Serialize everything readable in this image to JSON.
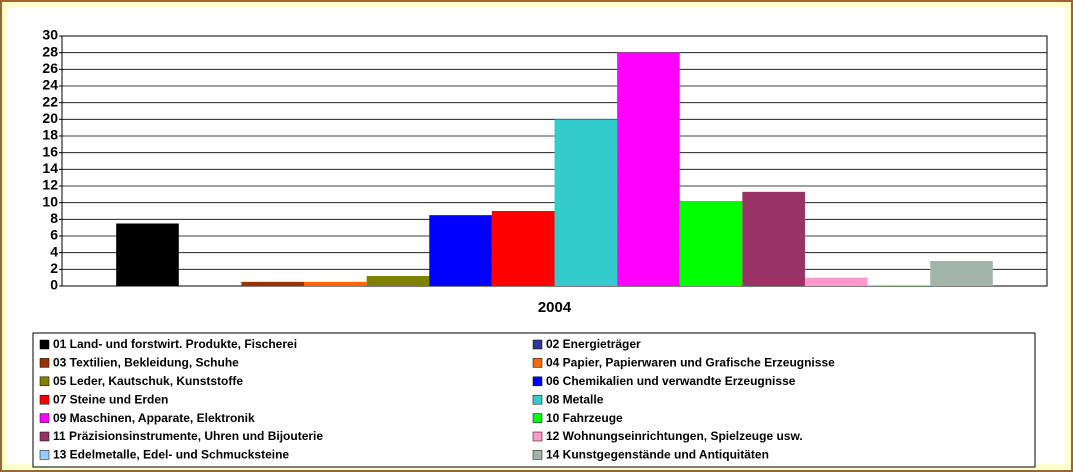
{
  "chart_data": {
    "type": "bar",
    "categories": [
      "2004"
    ],
    "series": [
      {
        "name": "01 Land- und forstwirt. Produkte, Fischerei",
        "color": "#000000",
        "values": [
          7.5
        ]
      },
      {
        "name": "02 Energieträger",
        "color": "#333399",
        "values": [
          0
        ]
      },
      {
        "name": "03 Textilien, Bekleidung, Schuhe",
        "color": "#993300",
        "values": [
          0.5
        ]
      },
      {
        "name": "04 Papier, Papierwaren und Grafische Erzeugnisse",
        "color": "#ff6600",
        "values": [
          0.5
        ]
      },
      {
        "name": "05 Leder, Kautschuk, Kunststoffe",
        "color": "#808000",
        "values": [
          1.2
        ]
      },
      {
        "name": "06 Chemikalien und verwandte Erzeugnisse",
        "color": "#0000ff",
        "values": [
          8.5
        ]
      },
      {
        "name": "07 Steine und Erden",
        "color": "#ff0000",
        "values": [
          9
        ]
      },
      {
        "name": "08 Metalle",
        "color": "#33cccc",
        "values": [
          20
        ]
      },
      {
        "name": "09 Maschinen, Apparate, Elektronik",
        "color": "#ff00ff",
        "values": [
          28
        ]
      },
      {
        "name": "10 Fahrzeuge",
        "color": "#00ff00",
        "values": [
          10.2
        ]
      },
      {
        "name": "11 Präzisionsinstrumente, Uhren und Bijouterie",
        "color": "#993366",
        "values": [
          11.3
        ]
      },
      {
        "name": "12 Wohnungseinrichtungen, Spielzeuge usw.",
        "color": "#ff99cc",
        "values": [
          1
        ]
      },
      {
        "name": "13 Edelmetalle, Edel- und Schmucksteine",
        "color": "#99ccff",
        "values": [
          0.1
        ]
      },
      {
        "name": "14 Kunstgegenstände und Antiquitäten",
        "color": "#a3b5aa",
        "values": [
          3
        ]
      }
    ],
    "ylim": [
      0,
      30
    ],
    "yticks": [
      0,
      2,
      4,
      6,
      8,
      10,
      12,
      14,
      16,
      18,
      20,
      22,
      24,
      26,
      28,
      30
    ],
    "grid": true
  }
}
